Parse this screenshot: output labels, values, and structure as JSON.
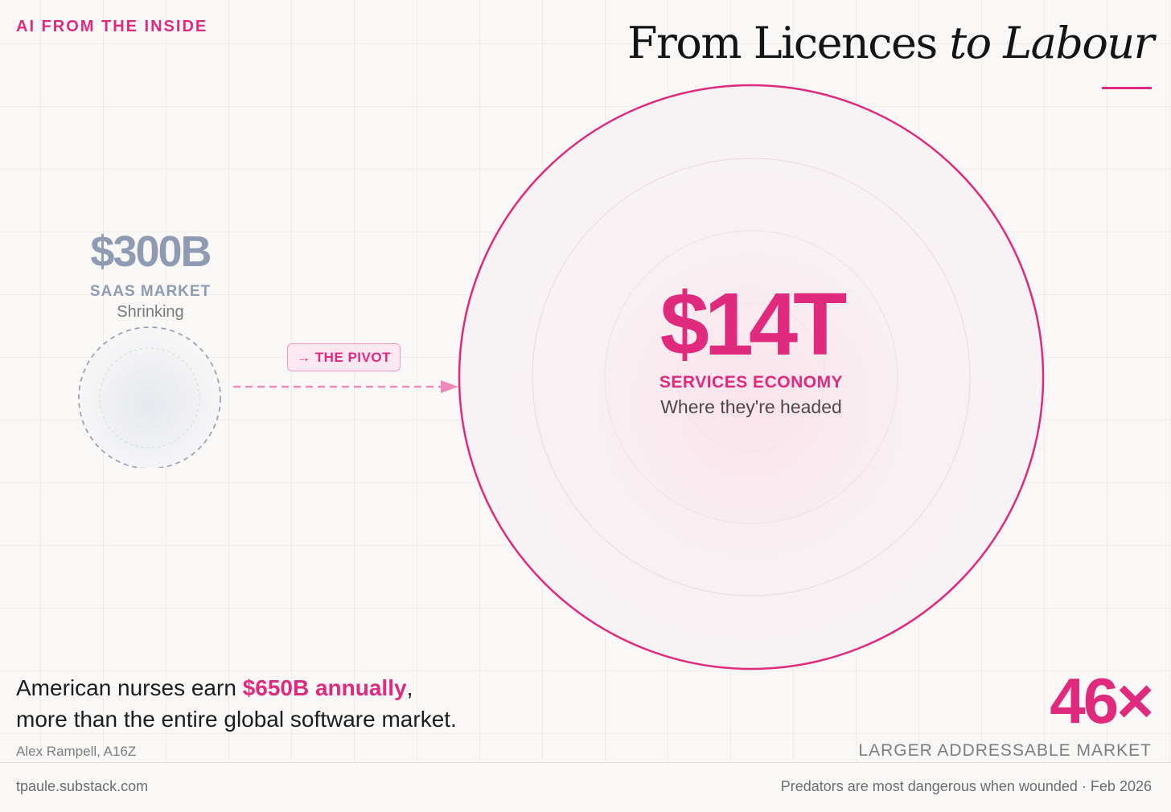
{
  "header": {
    "kicker": "AI FROM THE INSIDE",
    "title_part1": "From Licences ",
    "title_part2": "to Labour"
  },
  "chart_data": {
    "type": "bubble",
    "title": "From Licences to Labour",
    "comparison": [
      {
        "name": "SaaS Market",
        "value_label": "$300B",
        "value_usd_billions": 300,
        "label": "SAAS MARKET",
        "sub": "Shrinking"
      },
      {
        "name": "Services Economy",
        "value_label": "$14T",
        "value_usd_billions": 14000,
        "label": "SERVICES ECONOMY",
        "sub": "Where they're headed"
      }
    ],
    "annotation": "→ THE PIVOT",
    "multiplier": "46×",
    "multiplier_label": "LARGER ADDRESSABLE MARKET"
  },
  "quote": {
    "before": "American nurses earn ",
    "highlight": "$650B annually",
    "after": ",",
    "line2": "more than the entire global software market.",
    "attribution": "Alex Rampell, A16Z"
  },
  "footer": {
    "site": "tpaule.substack.com",
    "article": "Predators are most dangerous when wounded · Feb 2026"
  },
  "colors": {
    "accent": "#df2a7d",
    "muted": "#8f9bb3",
    "background": "#f9f8f6"
  }
}
